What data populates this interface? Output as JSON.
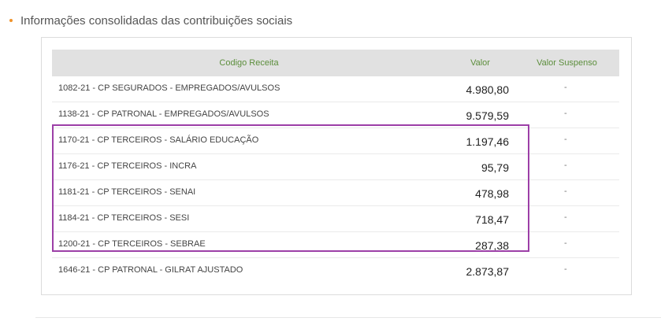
{
  "section": {
    "title": "Informações consolidadas das contribuições sociais"
  },
  "table": {
    "headers": {
      "code": "Codigo Receita",
      "valor": "Valor",
      "suspenso": "Valor Suspenso"
    },
    "rows": [
      {
        "code": "1082-21 - CP SEGURADOS - EMPREGADOS/AVULSOS",
        "valor": "4.980,80",
        "suspenso": "-"
      },
      {
        "code": "1138-21 - CP PATRONAL - EMPREGADOS/AVULSOS",
        "valor": "9.579,59",
        "suspenso": "-"
      },
      {
        "code": "1170-21 - CP TERCEIROS - SALÁRIO EDUCAÇÃO",
        "valor": "1.197,46",
        "suspenso": "-"
      },
      {
        "code": "1176-21 - CP TERCEIROS - INCRA",
        "valor": "95,79",
        "suspenso": "-"
      },
      {
        "code": "1181-21 - CP TERCEIROS - SENAI",
        "valor": "478,98",
        "suspenso": "-"
      },
      {
        "code": "1184-21 - CP TERCEIROS - SESI",
        "valor": "718,47",
        "suspenso": "-"
      },
      {
        "code": "1200-21 - CP TERCEIROS - SEBRAE",
        "valor": "287,38",
        "suspenso": "-"
      },
      {
        "code": "1646-21 - CP PATRONAL - GILRAT AJUSTADO",
        "valor": "2.873,87",
        "suspenso": "-"
      }
    ]
  },
  "colors": {
    "bullet": "#f0932b",
    "header_text": "#5c8e3c",
    "header_bg": "#e1e1e1",
    "highlight_border": "#9c3fa7"
  }
}
